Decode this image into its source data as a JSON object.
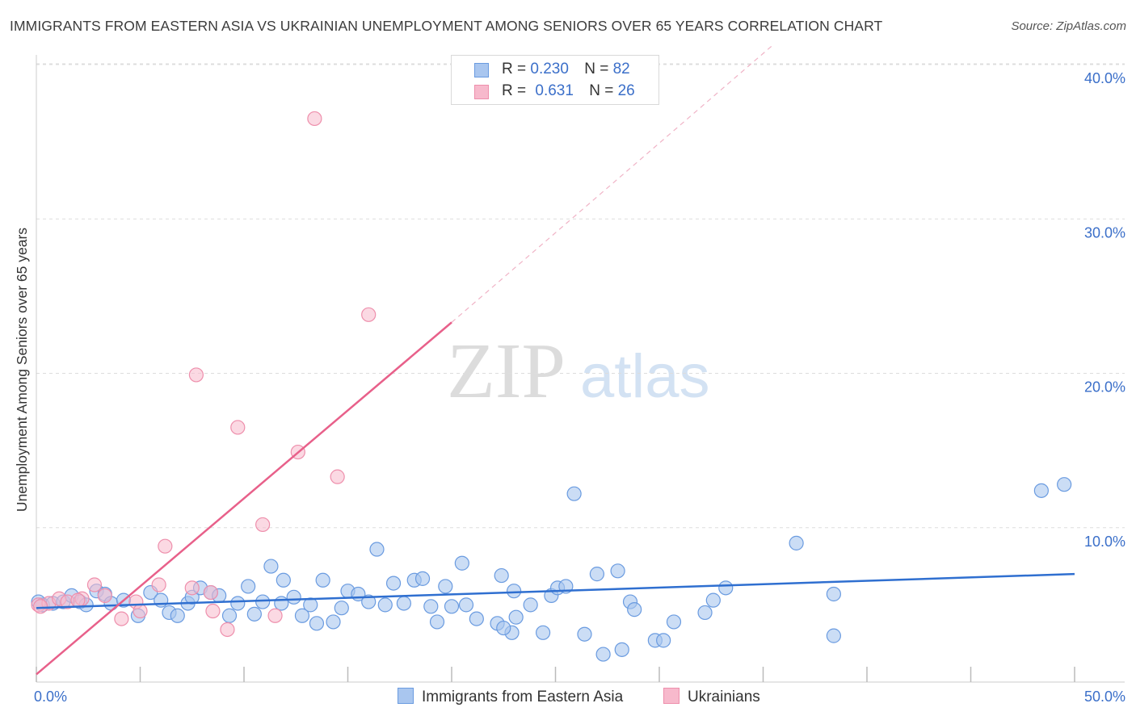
{
  "title": "IMMIGRANTS FROM EASTERN ASIA VS UKRAINIAN UNEMPLOYMENT AMONG SENIORS OVER 65 YEARS CORRELATION CHART",
  "source": "Source: ZipAtlas.com",
  "watermark": {
    "zip": "ZIP",
    "atlas": "atlas"
  },
  "legend_top": [
    {
      "r_label": "R =",
      "r_value": "0.230",
      "n_label": "N =",
      "n_value": "82"
    },
    {
      "r_label": "R =",
      "r_value": "0.631",
      "n_label": "N =",
      "n_value": "26"
    }
  ],
  "legend_bottom": [
    "Immigrants from Eastern Asia",
    "Ukrainians"
  ],
  "colors": {
    "blue_fill": "#a9c6ef",
    "blue_stroke": "#6a9be0",
    "blue_line": "#2f6fd0",
    "pink_fill": "#f7b9cc",
    "pink_stroke": "#ee8fac",
    "pink_line": "#e8608a",
    "axis_text": "#3b6fc9",
    "grid": "#dddddd"
  },
  "chart_data": {
    "type": "scatter",
    "title": "IMMIGRANTS FROM EASTERN ASIA VS UKRAINIAN UNEMPLOYMENT AMONG SENIORS OVER 65 YEARS CORRELATION CHART",
    "xlabel": "",
    "ylabel": "Unemployment Among Seniors over 65 years",
    "xlim": [
      0,
      50
    ],
    "ylim": [
      0,
      40
    ],
    "x_tick_labels": [
      "0.0%",
      "50.0%"
    ],
    "y_ticks": [
      10,
      20,
      30,
      40
    ],
    "y_tick_labels": [
      "10.0%",
      "20.0%",
      "30.0%",
      "40.0%"
    ],
    "series": [
      {
        "name": "Immigrants from Eastern Asia",
        "r": 0.23,
        "n": 82,
        "trend": {
          "x": [
            0,
            50
          ],
          "y": [
            4.8,
            7.0
          ]
        },
        "points": [
          [
            0.3,
            5.0
          ],
          [
            0.8,
            5.1
          ],
          [
            1.3,
            5.2
          ],
          [
            1.7,
            5.6
          ],
          [
            2.1,
            5.2
          ],
          [
            2.4,
            5.0
          ],
          [
            2.9,
            5.9
          ],
          [
            3.3,
            5.7
          ],
          [
            3.6,
            5.1
          ],
          [
            4.2,
            5.3
          ],
          [
            4.9,
            4.3
          ],
          [
            5.5,
            5.8
          ],
          [
            6.0,
            5.3
          ],
          [
            6.4,
            4.5
          ],
          [
            6.8,
            4.3
          ],
          [
            7.3,
            5.1
          ],
          [
            7.5,
            5.5
          ],
          [
            7.9,
            6.1
          ],
          [
            8.4,
            5.8
          ],
          [
            8.8,
            5.6
          ],
          [
            9.3,
            4.3
          ],
          [
            9.7,
            5.1
          ],
          [
            10.2,
            6.2
          ],
          [
            10.5,
            4.4
          ],
          [
            10.9,
            5.2
          ],
          [
            11.3,
            7.5
          ],
          [
            11.8,
            5.1
          ],
          [
            11.9,
            6.6
          ],
          [
            12.4,
            5.5
          ],
          [
            12.8,
            4.3
          ],
          [
            13.2,
            5.0
          ],
          [
            13.5,
            3.8
          ],
          [
            13.8,
            6.6
          ],
          [
            14.3,
            3.9
          ],
          [
            14.7,
            4.8
          ],
          [
            15.0,
            5.9
          ],
          [
            15.5,
            5.7
          ],
          [
            16.0,
            5.2
          ],
          [
            16.4,
            8.6
          ],
          [
            16.8,
            5.0
          ],
          [
            17.2,
            6.4
          ],
          [
            17.7,
            5.1
          ],
          [
            18.2,
            6.6
          ],
          [
            18.6,
            6.7
          ],
          [
            19.0,
            4.9
          ],
          [
            19.3,
            3.9
          ],
          [
            19.7,
            6.2
          ],
          [
            20.0,
            4.9
          ],
          [
            20.5,
            7.7
          ],
          [
            20.7,
            5.0
          ],
          [
            21.2,
            4.1
          ],
          [
            22.2,
            3.8
          ],
          [
            22.4,
            6.9
          ],
          [
            22.9,
            3.2
          ],
          [
            22.5,
            3.5
          ],
          [
            23.1,
            4.2
          ],
          [
            23.0,
            5.9
          ],
          [
            23.8,
            5.0
          ],
          [
            24.4,
            3.2
          ],
          [
            24.8,
            5.6
          ],
          [
            25.1,
            6.1
          ],
          [
            25.5,
            6.2
          ],
          [
            25.9,
            12.2
          ],
          [
            26.4,
            3.1
          ],
          [
            27.0,
            7.0
          ],
          [
            27.3,
            1.8
          ],
          [
            28.0,
            7.2
          ],
          [
            28.2,
            2.1
          ],
          [
            28.6,
            5.2
          ],
          [
            28.8,
            4.7
          ],
          [
            29.8,
            2.7
          ],
          [
            30.2,
            2.7
          ],
          [
            30.7,
            3.9
          ],
          [
            32.2,
            4.5
          ],
          [
            32.6,
            5.3
          ],
          [
            33.2,
            6.1
          ],
          [
            36.6,
            9.0
          ],
          [
            38.4,
            5.7
          ],
          [
            38.4,
            3.0
          ],
          [
            48.4,
            12.4
          ],
          [
            49.5,
            12.8
          ],
          [
            0.1,
            5.2
          ]
        ]
      },
      {
        "name": "Ukrainians",
        "r": 0.631,
        "n": 26,
        "trend": {
          "x": [
            0,
            20
          ],
          "y": [
            0.5,
            23.3
          ]
        },
        "trend_extension": {
          "x": [
            20,
            35.5
          ],
          "y": [
            23.3,
            41.3
          ]
        },
        "points": [
          [
            0.1,
            5.0
          ],
          [
            0.6,
            5.1
          ],
          [
            1.1,
            5.4
          ],
          [
            1.5,
            5.2
          ],
          [
            2.2,
            5.4
          ],
          [
            2.8,
            6.3
          ],
          [
            3.3,
            5.6
          ],
          [
            4.1,
            4.1
          ],
          [
            4.8,
            5.2
          ],
          [
            5.0,
            4.6
          ],
          [
            5.9,
            6.3
          ],
          [
            6.2,
            8.8
          ],
          [
            7.5,
            6.1
          ],
          [
            7.7,
            19.9
          ],
          [
            8.4,
            5.8
          ],
          [
            8.5,
            4.6
          ],
          [
            9.2,
            3.4
          ],
          [
            9.7,
            16.5
          ],
          [
            10.9,
            10.2
          ],
          [
            11.5,
            4.3
          ],
          [
            12.6,
            14.9
          ],
          [
            13.4,
            36.5
          ],
          [
            14.5,
            13.3
          ],
          [
            16.0,
            23.8
          ],
          [
            0.2,
            4.9
          ],
          [
            2.0,
            5.3
          ]
        ]
      }
    ]
  }
}
